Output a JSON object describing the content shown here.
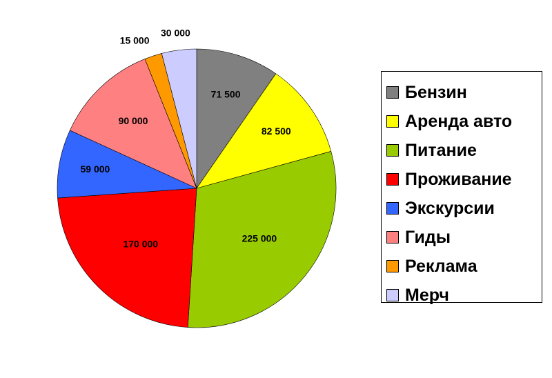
{
  "chart_data": {
    "type": "pie",
    "categories": [
      "Бензин",
      "Аренда авто",
      "Питание",
      "Проживание",
      "Экскурсии",
      "Гиды",
      "Реклама",
      "Мерч"
    ],
    "values": [
      71500,
      82500,
      225000,
      170000,
      59000,
      90000,
      15000,
      30000
    ],
    "data_labels": [
      "71 500",
      "82 500",
      "225 000",
      "170 000",
      "59 000",
      "90 000",
      "15 000",
      "30 000"
    ],
    "colors": [
      "#808080",
      "#ffff00",
      "#99cc00",
      "#ff0000",
      "#3366ff",
      "#ff8080",
      "#ff9900",
      "#ccccff"
    ],
    "start_angle_deg": 0,
    "direction": "clockwise",
    "legend_position": "right"
  }
}
